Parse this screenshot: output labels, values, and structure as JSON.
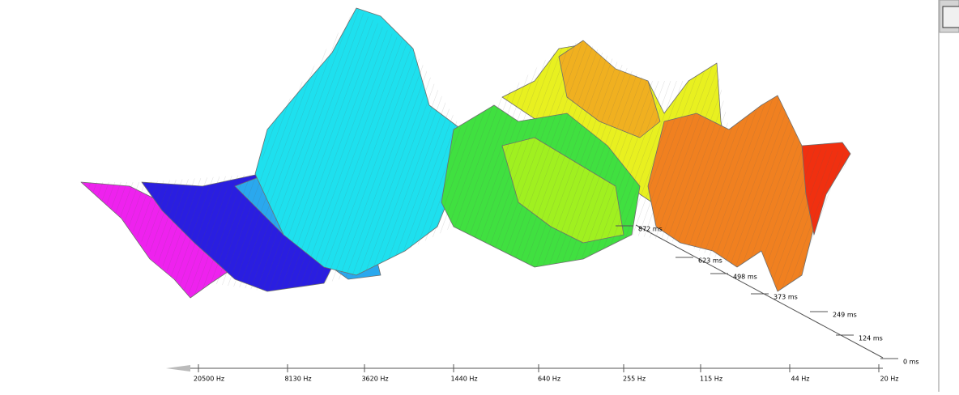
{
  "frequency_axis": {
    "labels": [
      "20500 Hz",
      "8130 Hz",
      "3620 Hz",
      "1440 Hz",
      "640 Hz",
      "255 Hz",
      "115 Hz",
      "44 Hz",
      "20 Hz"
    ]
  },
  "time_axis": {
    "labels": [
      "0 ms",
      "124 ms",
      "249 ms",
      "373 ms",
      "498 ms",
      "623 ms",
      "872 ms"
    ]
  }
}
